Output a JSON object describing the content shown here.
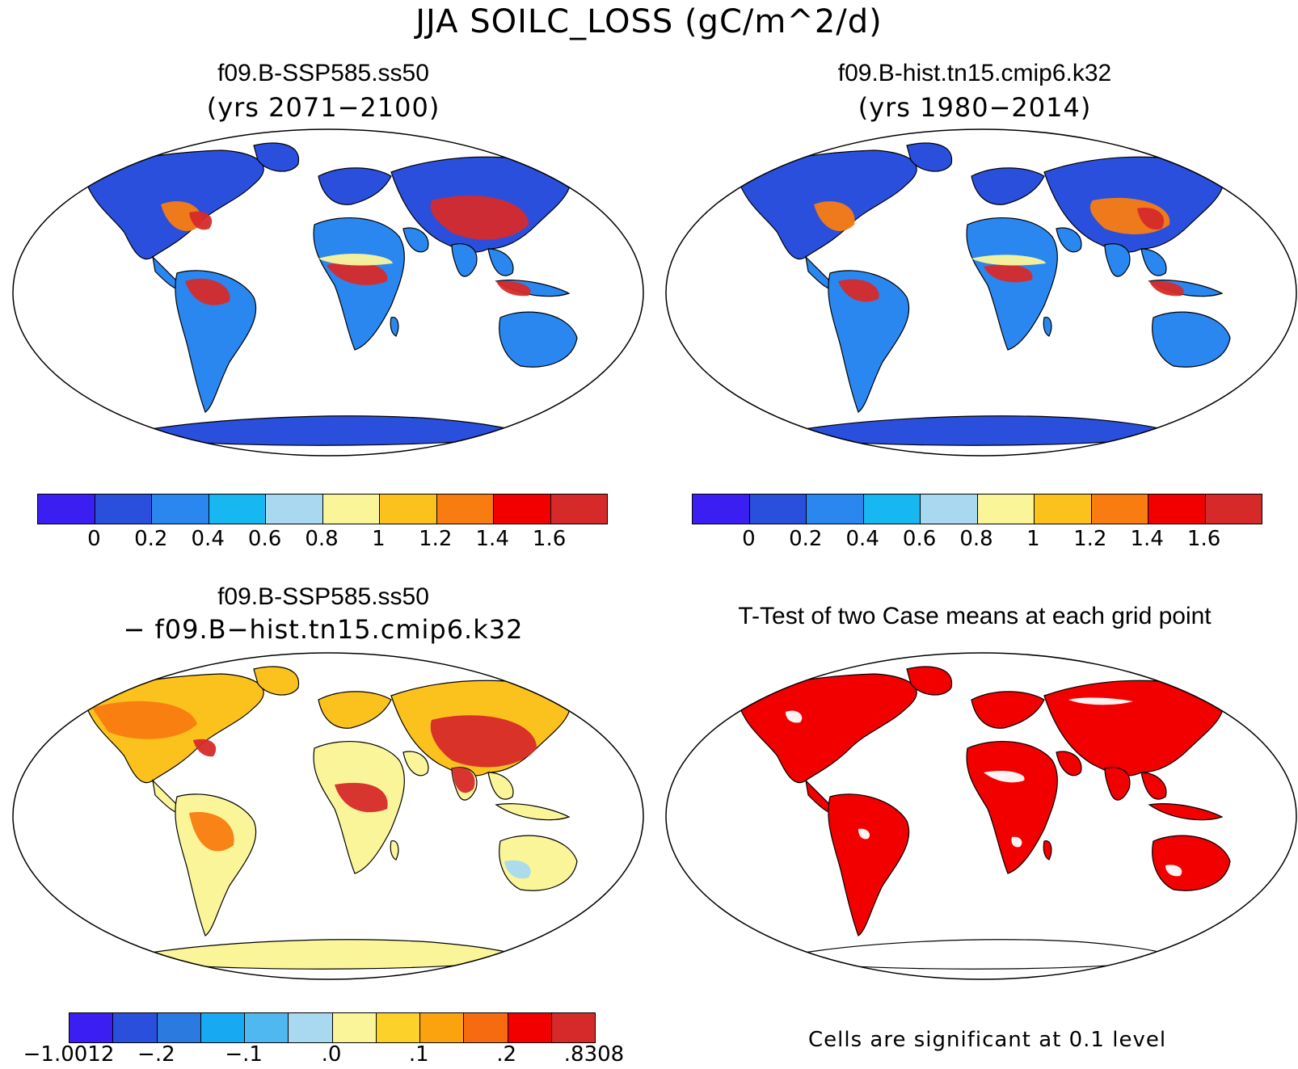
{
  "figure": {
    "title": "JJA SOILC_LOSS (gC/m^2/d)"
  },
  "panels": {
    "top_left": {
      "title": "f09.B-SSP585.ss50",
      "subtitle": "(yrs 2071−2100)"
    },
    "top_right": {
      "title": "f09.B-hist.tn15.cmip6.k32",
      "subtitle": "(yrs 1980−2014)"
    },
    "bottom_left": {
      "title": "f09.B-SSP585.ss50",
      "subtitle": "− f09.B−hist.tn15.cmip6.k32"
    },
    "bottom_right": {
      "title": "T-Test of two Case means at each grid point",
      "note": "Cells are significant at 0.1 level"
    }
  },
  "colorbars": {
    "absolute": {
      "colors": [
        "#3b1ff2",
        "#2a4fdc",
        "#2a87f0",
        "#17b7f2",
        "#a8d9f0",
        "#fbf59a",
        "#fbc21e",
        "#f97c10",
        "#f20000",
        "#d62a2a"
      ],
      "ticks": [
        "0",
        "0.2",
        "0.4",
        "0.6",
        "0.8",
        "1",
        "1.2",
        "1.4",
        "1.6"
      ]
    },
    "difference": {
      "colors": [
        "#3b1ff2",
        "#2a4fdc",
        "#2a7ae0",
        "#17a9f2",
        "#4fb8ee",
        "#a8d9f0",
        "#fbf59a",
        "#fbd12a",
        "#fba20f",
        "#f66a10",
        "#f20000",
        "#d62a2a"
      ],
      "ticks": [
        "−1.0012",
        "−.2",
        "−.1",
        ".0",
        ".1",
        ".2",
        ".8308"
      ]
    }
  },
  "maps": {
    "projection": "Robinson",
    "ocean_color": "#ffffff",
    "panel_palettes": {
      "top_left": {
        "land": "#2a87f0",
        "north": "#2a4fdc",
        "hot": "#d62a2a",
        "warm": "#f97c10",
        "mild": "#fbf59a",
        "antarctica": "#2a4fdc"
      },
      "top_right": {
        "land": "#2a87f0",
        "north": "#2a4fdc",
        "hot": "#d62a2a",
        "warm": "#f97c10",
        "mild": "#fbf59a",
        "antarctica": "#2a4fdc"
      },
      "bottom_left": {
        "land": "#fbf59a",
        "north": "#fbc21e",
        "hot": "#d62a2a",
        "warm": "#f97c10",
        "mild": "#a8d9f0",
        "antarctica": "#fbf59a"
      },
      "bottom_right": {
        "land": "#f20000",
        "north": "#f20000",
        "hot": "#f20000",
        "warm": "#f20000",
        "mild": "#ffffff",
        "antarctica": "#ffffff"
      }
    }
  }
}
